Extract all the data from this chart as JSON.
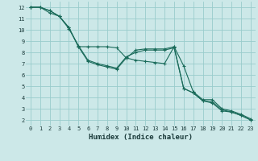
{
  "xlabel": "Humidex (Indice chaleur)",
  "bg_color": "#cce8e8",
  "grid_color": "#99cccc",
  "line_color": "#1a6b5a",
  "xlim": [
    -0.5,
    23.5
  ],
  "ylim": [
    1.5,
    12.5
  ],
  "xticks": [
    0,
    1,
    2,
    3,
    4,
    5,
    6,
    7,
    8,
    9,
    10,
    11,
    12,
    13,
    14,
    15,
    16,
    17,
    18,
    19,
    20,
    21,
    22,
    23
  ],
  "yticks": [
    2,
    3,
    4,
    5,
    6,
    7,
    8,
    9,
    10,
    11,
    12
  ],
  "line1_x": [
    0,
    1,
    2,
    3,
    4,
    5,
    6,
    7,
    8,
    9,
    10,
    11,
    12,
    13,
    14,
    15,
    16,
    17,
    18,
    19,
    20,
    21,
    22,
    23
  ],
  "line1_y": [
    12,
    12,
    11.7,
    11.2,
    10.2,
    8.5,
    7.2,
    6.9,
    6.7,
    6.5,
    7.5,
    8.2,
    8.3,
    8.3,
    8.3,
    8.5,
    6.8,
    4.5,
    3.8,
    3.8,
    3.0,
    2.8,
    2.5,
    2.1
  ],
  "line2_x": [
    0,
    1,
    2,
    3,
    4,
    5,
    6,
    7,
    8,
    9,
    10,
    11,
    12,
    13,
    14,
    15,
    16,
    17,
    18,
    19,
    20,
    21,
    22,
    23
  ],
  "line2_y": [
    12,
    12,
    11.5,
    11.2,
    10.1,
    8.6,
    7.3,
    7.0,
    6.8,
    6.6,
    7.6,
    8.0,
    8.2,
    8.2,
    8.2,
    8.4,
    4.8,
    4.4,
    3.7,
    3.6,
    2.9,
    2.7,
    2.4,
    2.0
  ],
  "line3_x": [
    0,
    1,
    2,
    3,
    4,
    5,
    6,
    7,
    8,
    9,
    10,
    11,
    12,
    13,
    14,
    15,
    16,
    17,
    18,
    19,
    20,
    21,
    22,
    23
  ],
  "line3_y": [
    12,
    12,
    11.7,
    11.2,
    10.2,
    8.5,
    8.5,
    8.5,
    8.5,
    8.4,
    7.5,
    7.3,
    7.2,
    7.1,
    7.0,
    8.5,
    4.8,
    4.4,
    3.7,
    3.5,
    2.8,
    2.7,
    2.4,
    2.0
  ],
  "xlabel_fontsize": 6.5,
  "tick_fontsize": 5.0
}
